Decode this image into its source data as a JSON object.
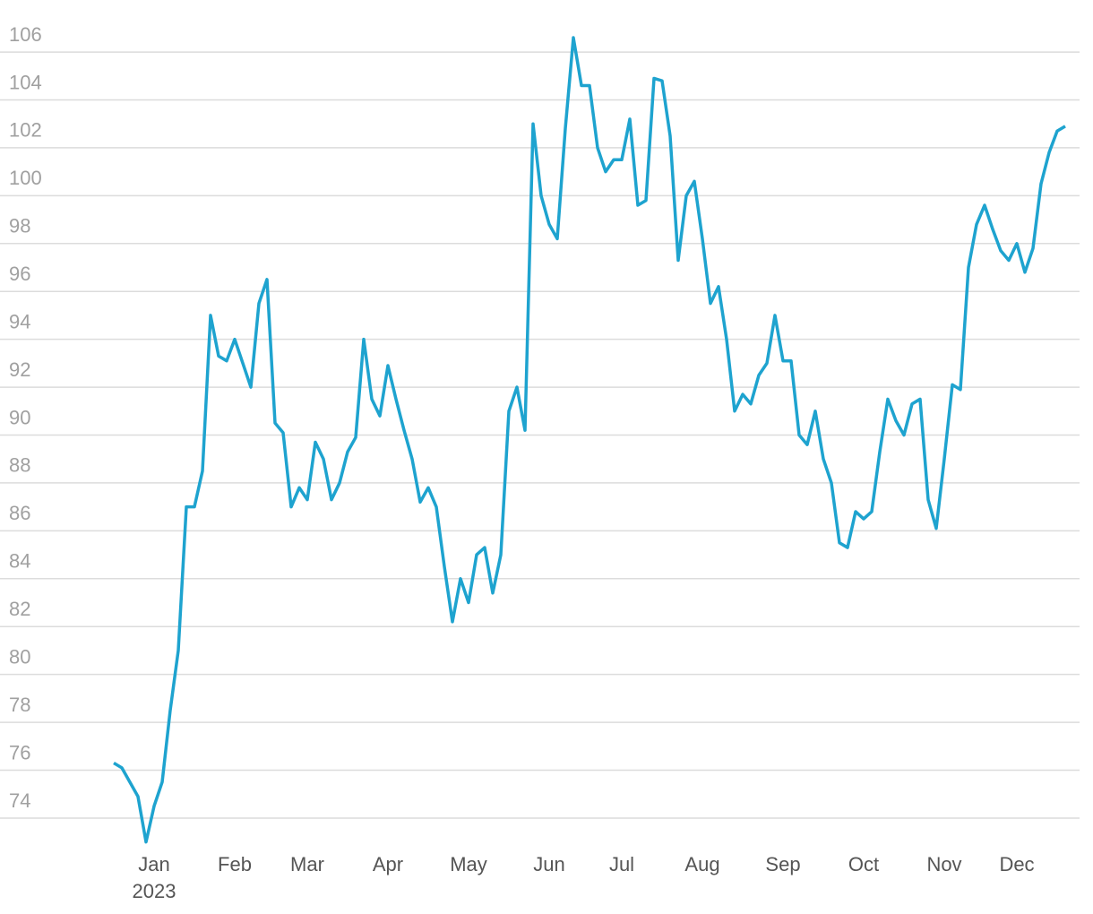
{
  "chart_data": {
    "type": "line",
    "year_label": "2023",
    "categories": [
      null,
      null,
      null,
      null,
      null,
      "Jan",
      null,
      null,
      null,
      null,
      null,
      null,
      null,
      null,
      null,
      "Feb",
      null,
      null,
      null,
      null,
      null,
      null,
      null,
      null,
      "Mar",
      null,
      null,
      null,
      null,
      null,
      null,
      null,
      null,
      null,
      "Apr",
      null,
      null,
      null,
      null,
      null,
      null,
      null,
      null,
      null,
      "May",
      null,
      null,
      null,
      null,
      null,
      null,
      null,
      null,
      null,
      "Jun",
      null,
      null,
      null,
      null,
      null,
      null,
      null,
      null,
      "Jul",
      null,
      null,
      null,
      null,
      null,
      null,
      null,
      null,
      null,
      "Aug",
      null,
      null,
      null,
      null,
      null,
      null,
      null,
      null,
      null,
      "Sep",
      null,
      null,
      null,
      null,
      null,
      null,
      null,
      null,
      null,
      "Oct",
      null,
      null,
      null,
      null,
      null,
      null,
      null,
      null,
      null,
      "Nov",
      null,
      null,
      null,
      null,
      null,
      null,
      null,
      null,
      "Dec",
      null,
      null,
      null,
      null,
      null,
      null
    ],
    "series": [
      {
        "color": "#1ea3cf",
        "values": [
          76.3,
          76.1,
          75.5,
          74.9,
          73,
          74.5,
          75.5,
          78.5,
          81,
          87,
          87,
          88.5,
          95,
          93.3,
          93.1,
          94,
          93,
          92,
          95.5,
          96.5,
          90.5,
          90.1,
          87,
          87.8,
          87.3,
          89.7,
          89,
          87.3,
          88,
          89.3,
          89.9,
          94,
          91.5,
          90.8,
          92.9,
          91.5,
          90.2,
          89,
          87.2,
          87.8,
          87,
          84.5,
          82.2,
          84,
          83,
          85,
          85.3,
          83.4,
          85,
          91,
          92,
          90.2,
          103,
          100,
          98.8,
          98.2,
          102.8,
          106.6,
          104.6,
          104.6,
          102,
          101,
          101.5,
          101.5,
          103.2,
          99.6,
          99.8,
          104.9,
          104.8,
          102.5,
          97.3,
          100,
          100.6,
          98.2,
          95.5,
          96.2,
          94,
          91,
          91.7,
          91.3,
          92.5,
          93,
          95,
          93.1,
          93.1,
          90,
          89.6,
          91,
          89,
          88,
          85.5,
          85.3,
          86.8,
          86.5,
          86.8,
          89.3,
          91.5,
          90.6,
          90,
          91.3,
          91.5,
          87.3,
          86.1,
          89,
          92.1,
          91.9,
          97,
          98.8,
          99.6,
          98.6,
          97.7,
          97.3,
          98,
          96.8,
          97.8,
          100.5,
          101.8,
          102.7,
          102.9
        ]
      }
    ],
    "ylim": [
      72.8,
      107.5
    ],
    "yticks": [
      74,
      76,
      78,
      80,
      82,
      84,
      86,
      88,
      90,
      92,
      94,
      96,
      98,
      100,
      102,
      104,
      106
    ],
    "grid": true
  }
}
